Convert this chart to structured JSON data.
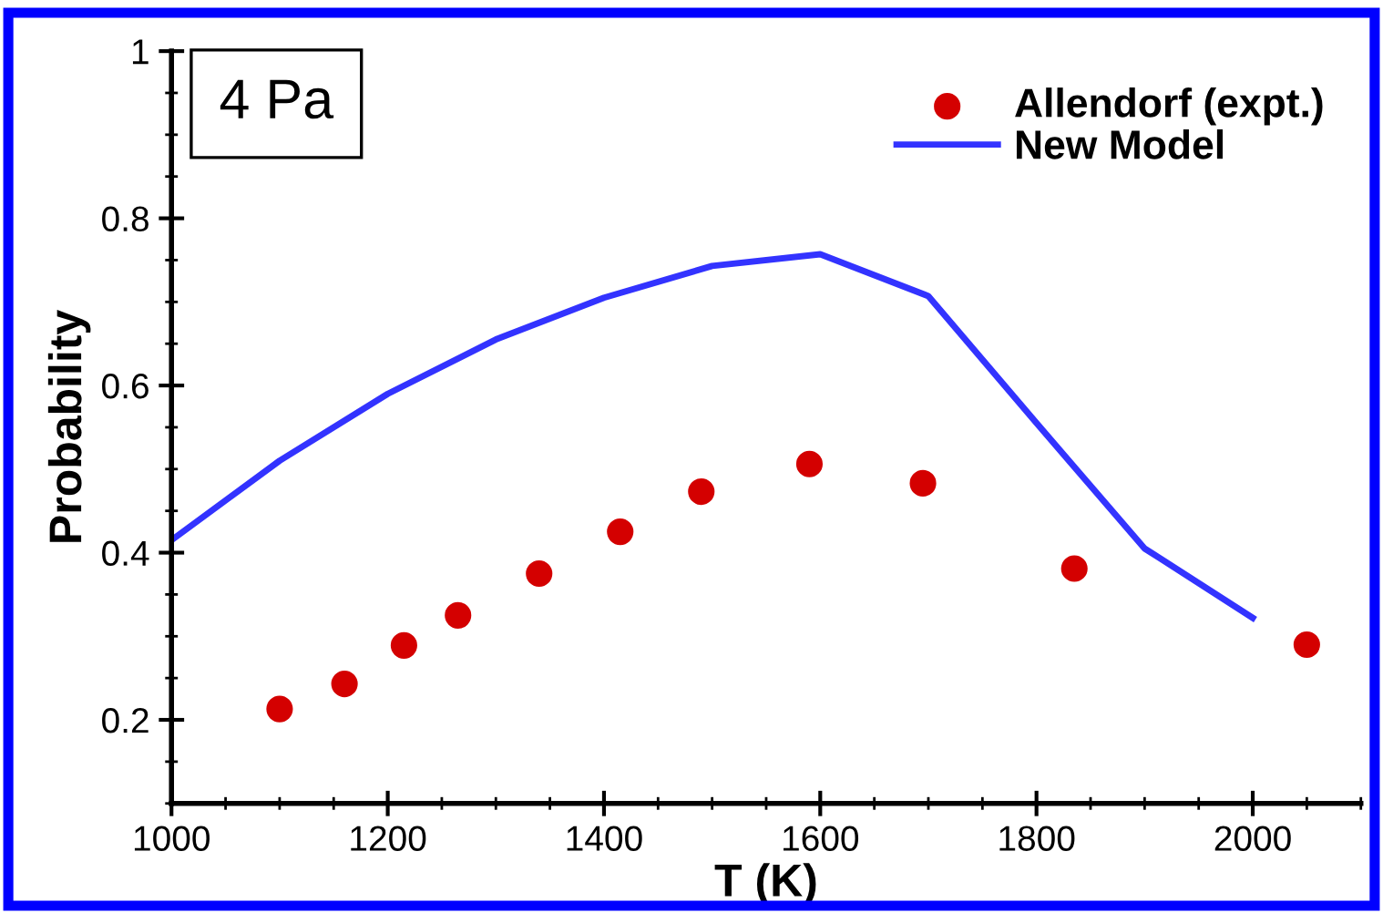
{
  "chart_data": {
    "type": "scatter",
    "xlabel": "T (K)",
    "ylabel": "Probability",
    "annotations": [
      "4 Pa"
    ],
    "xlim": [
      1000,
      2100
    ],
    "xticks": [
      1000,
      1200,
      1400,
      1600,
      1800,
      2000
    ],
    "ylim": [
      0.1,
      1
    ],
    "yticks": [
      0.2,
      0.4,
      0.6,
      0.8,
      1
    ],
    "grid": false,
    "legend": "top right",
    "series": [
      {
        "name": "Allendorf (expt.)",
        "color": "#d40000",
        "marker": "circle",
        "x": [
          1100,
          1160,
          1215,
          1265,
          1340,
          1415,
          1490,
          1590,
          1695,
          1835,
          2050
        ],
        "values": [
          0.213,
          0.243,
          0.289,
          0.325,
          0.375,
          0.425,
          0.473,
          0.506,
          0.483,
          0.381,
          0.29
        ]
      },
      {
        "name": "New Model",
        "type": "line",
        "color": "#3333ff",
        "line_style": "solid",
        "x": [
          1000,
          1100,
          1200,
          1300,
          1400,
          1500,
          1600,
          1700,
          1800,
          1900,
          2000
        ],
        "values": [
          0.415,
          0.51,
          0.59,
          0.655,
          0.705,
          0.743,
          0.757,
          0.707,
          0.555,
          0.405,
          0.322
        ]
      }
    ]
  }
}
